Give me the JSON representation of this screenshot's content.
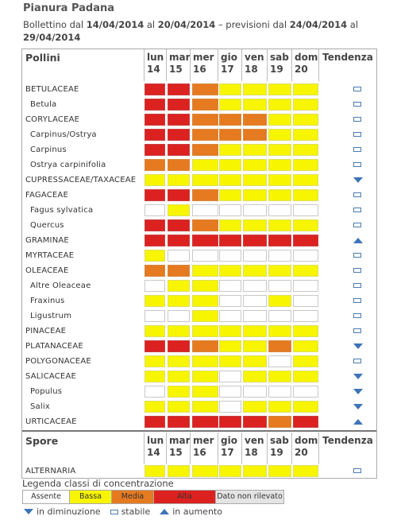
{
  "header": {
    "region": "Pianura Padana",
    "bulletin_prefix": "Bollettino dal",
    "date_from": "14/04/2014",
    "al1": "al",
    "date_to": "20/04/2014",
    "forecast_prefix": "– previsioni dal",
    "forecast_from": "24/04/2014",
    "al2": "al",
    "forecast_to": "29/04/2014"
  },
  "colors": {
    "assente": "#ffffff",
    "bassa": "#f7f500",
    "media": "#e57a20",
    "alta": "#dc2220",
    "trend_icon": "#3d74b8"
  },
  "level_key": [
    "assente",
    "bassa",
    "media",
    "alta"
  ],
  "days": [
    {
      "name": "lun",
      "num": "14"
    },
    {
      "name": "mar",
      "num": "15"
    },
    {
      "name": "mer",
      "num": "16"
    },
    {
      "name": "gio",
      "num": "17"
    },
    {
      "name": "ven",
      "num": "18"
    },
    {
      "name": "sab",
      "num": "19"
    },
    {
      "name": "dom",
      "num": "20"
    }
  ],
  "pollini": {
    "header_label": "Pollini",
    "trend_label": "Tendenza",
    "rows": [
      {
        "name": "BETULACEAE",
        "sub": false,
        "levels": [
          3,
          3,
          2,
          1,
          1,
          1,
          1
        ],
        "trend": "stabile"
      },
      {
        "name": "Betula",
        "sub": true,
        "levels": [
          3,
          3,
          2,
          1,
          1,
          1,
          1
        ],
        "trend": "stabile"
      },
      {
        "name": "CORYLACEAE",
        "sub": false,
        "levels": [
          3,
          3,
          2,
          2,
          2,
          1,
          1
        ],
        "trend": "stabile"
      },
      {
        "name": "Carpinus/Ostrya",
        "sub": true,
        "levels": [
          3,
          3,
          2,
          2,
          2,
          1,
          1
        ],
        "trend": "stabile"
      },
      {
        "name": "Carpinus",
        "sub": true,
        "levels": [
          3,
          3,
          2,
          1,
          1,
          1,
          1
        ],
        "trend": "stabile"
      },
      {
        "name": "Ostrya carpinifolia",
        "sub": true,
        "levels": [
          2,
          2,
          1,
          1,
          1,
          1,
          1
        ],
        "trend": "stabile"
      },
      {
        "name": "CUPRESSACEAE/TAXACEAE",
        "sub": false,
        "levels": [
          1,
          1,
          1,
          1,
          1,
          1,
          1
        ],
        "trend": "diminuzione"
      },
      {
        "name": "FAGACEAE",
        "sub": false,
        "levels": [
          3,
          3,
          2,
          1,
          1,
          1,
          1
        ],
        "trend": "stabile"
      },
      {
        "name": "Fagus sylvatica",
        "sub": true,
        "levels": [
          0,
          1,
          0,
          0,
          0,
          0,
          0
        ],
        "trend": "stabile"
      },
      {
        "name": "Quercus",
        "sub": true,
        "levels": [
          3,
          3,
          2,
          1,
          1,
          1,
          1
        ],
        "trend": "stabile"
      },
      {
        "name": "GRAMINAE",
        "sub": false,
        "levels": [
          3,
          3,
          3,
          3,
          3,
          3,
          3
        ],
        "trend": "aumento"
      },
      {
        "name": "MYRTACEAE",
        "sub": false,
        "levels": [
          1,
          0,
          0,
          0,
          0,
          0,
          0
        ],
        "trend": "stabile"
      },
      {
        "name": "OLEACEAE",
        "sub": false,
        "levels": [
          2,
          2,
          1,
          1,
          1,
          1,
          1
        ],
        "trend": "stabile"
      },
      {
        "name": "Altre Oleaceae",
        "sub": true,
        "levels": [
          0,
          1,
          1,
          0,
          0,
          0,
          0
        ],
        "trend": "stabile"
      },
      {
        "name": "Fraxinus",
        "sub": true,
        "levels": [
          1,
          1,
          1,
          0,
          0,
          1,
          0
        ],
        "trend": "stabile"
      },
      {
        "name": "Ligustrum",
        "sub": true,
        "levels": [
          0,
          0,
          1,
          0,
          0,
          0,
          0
        ],
        "trend": "stabile"
      },
      {
        "name": "PINACEAE",
        "sub": false,
        "levels": [
          1,
          1,
          1,
          1,
          1,
          1,
          1
        ],
        "trend": "stabile"
      },
      {
        "name": "PLATANACEAE",
        "sub": false,
        "levels": [
          3,
          3,
          2,
          1,
          1,
          2,
          1
        ],
        "trend": "diminuzione"
      },
      {
        "name": "POLYGONACEAE",
        "sub": false,
        "levels": [
          1,
          1,
          1,
          1,
          1,
          0,
          1
        ],
        "trend": "stabile"
      },
      {
        "name": "SALICACEAE",
        "sub": false,
        "levels": [
          1,
          1,
          1,
          0,
          1,
          1,
          1
        ],
        "trend": "diminuzione"
      },
      {
        "name": "Populus",
        "sub": true,
        "levels": [
          0,
          1,
          1,
          0,
          0,
          0,
          0
        ],
        "trend": "diminuzione"
      },
      {
        "name": "Salix",
        "sub": true,
        "levels": [
          1,
          1,
          1,
          0,
          1,
          1,
          1
        ],
        "trend": "diminuzione"
      },
      {
        "name": "URTICACEAE",
        "sub": false,
        "levels": [
          3,
          3,
          3,
          3,
          3,
          2,
          3
        ],
        "trend": "aumento"
      }
    ]
  },
  "spore": {
    "header_label": "Spore",
    "trend_label": "Tendenza",
    "rows": [
      {
        "name": "ALTERNARIA",
        "sub": false,
        "levels": [
          1,
          1,
          1,
          1,
          1,
          1,
          1
        ],
        "trend": "stabile"
      }
    ]
  },
  "legend": {
    "title": "Legenda classi di concentrazione",
    "items": [
      {
        "label": "Assente",
        "level": "assente"
      },
      {
        "label": "Bassa",
        "level": "bassa"
      },
      {
        "label": "Media",
        "level": "media"
      },
      {
        "label": "Alta",
        "level": "alta"
      },
      {
        "label": "Dato non rilevato",
        "level": "nd"
      }
    ],
    "trend_items": [
      {
        "label": "in diminuzione",
        "icon": "diminuzione"
      },
      {
        "label": "stabile",
        "icon": "stabile"
      },
      {
        "label": "in aumento",
        "icon": "aumento"
      }
    ]
  }
}
